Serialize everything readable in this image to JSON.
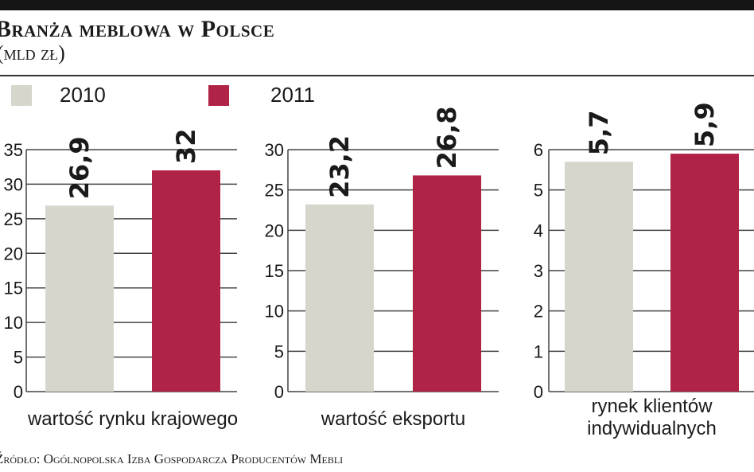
{
  "header": {
    "title": "Branża meblowa w Polsce",
    "unit": "(mld zł)"
  },
  "legend": [
    {
      "label": "2010",
      "color": "#d6d6cc"
    },
    {
      "label": "2011",
      "color": "#b02346"
    }
  ],
  "chart_data": [
    {
      "type": "bar",
      "title": "",
      "xlabel": "wartość rynku krajowego",
      "categories": [
        "2010",
        "2011"
      ],
      "values": [
        26.9,
        32
      ],
      "value_labels": [
        "26,9",
        "32"
      ],
      "ylim": [
        0,
        35
      ],
      "yticks": [
        0,
        5,
        10,
        15,
        20,
        25,
        30,
        35
      ],
      "grid": true
    },
    {
      "type": "bar",
      "title": "",
      "xlabel": "wartość eksportu",
      "categories": [
        "2010",
        "2011"
      ],
      "values": [
        23.2,
        26.8
      ],
      "value_labels": [
        "23,2",
        "26,8"
      ],
      "ylim": [
        0,
        30
      ],
      "yticks": [
        0,
        5,
        10,
        15,
        20,
        25,
        30
      ],
      "grid": true
    },
    {
      "type": "bar",
      "title": "",
      "xlabel": "rynek klientów indywidualnych",
      "xlabel_lines": [
        "rynek klientów",
        "indywidualnych"
      ],
      "categories": [
        "2010",
        "2011"
      ],
      "values": [
        5.7,
        5.9
      ],
      "value_labels": [
        "5,7",
        "5,9"
      ],
      "ylim": [
        0,
        6
      ],
      "yticks": [
        0,
        1,
        2,
        3,
        4,
        5,
        6
      ],
      "grid": true
    }
  ],
  "source": "Źródło: Ogólnopolska Izba Gospodarcza Producentów Mebli"
}
